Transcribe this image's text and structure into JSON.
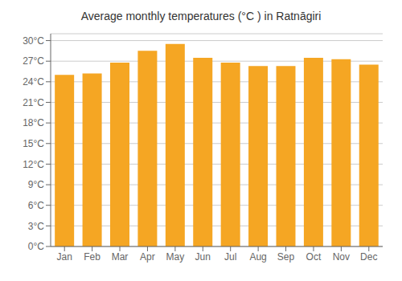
{
  "chart_data": {
    "type": "bar",
    "title": "Average monthly temperatures (°C ) in Ratnāgiri",
    "categories": [
      "Jan",
      "Feb",
      "Mar",
      "Apr",
      "May",
      "Jun",
      "Jul",
      "Aug",
      "Sep",
      "Oct",
      "Nov",
      "Dec"
    ],
    "values": [
      25.0,
      25.2,
      26.8,
      28.5,
      29.5,
      27.5,
      26.8,
      26.3,
      26.3,
      27.5,
      27.3,
      26.5
    ],
    "color": "#F5A623",
    "ylim": [
      0,
      31
    ],
    "yticks": [
      {
        "value": 0,
        "label": "0°C"
      },
      {
        "value": 3,
        "label": "3°C"
      },
      {
        "value": 6,
        "label": "6°C"
      },
      {
        "value": 9,
        "label": "9°C"
      },
      {
        "value": 12,
        "label": "12°C"
      },
      {
        "value": 15,
        "label": "15°C"
      },
      {
        "value": 18,
        "label": "18°C"
      },
      {
        "value": 21,
        "label": "21°C"
      },
      {
        "value": 24,
        "label": "24°C"
      },
      {
        "value": 27,
        "label": "27°C"
      },
      {
        "value": 30,
        "label": "30°C"
      }
    ],
    "grid": true
  }
}
